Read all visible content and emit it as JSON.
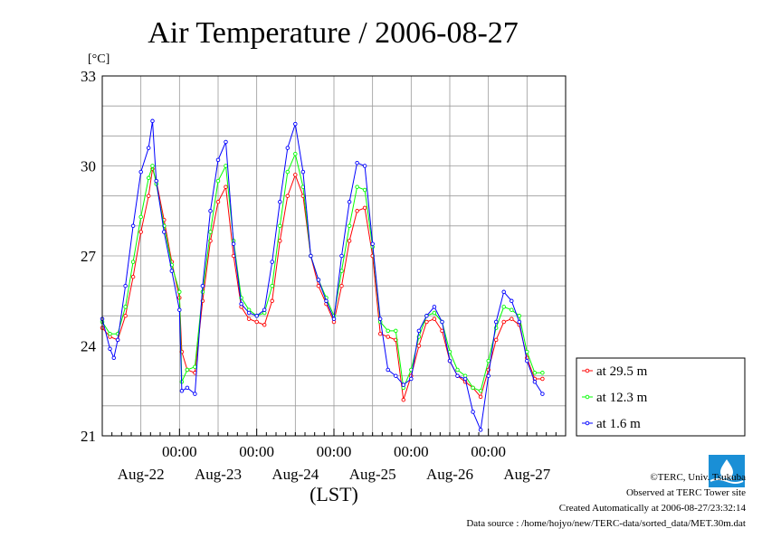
{
  "chart_data": {
    "type": "line",
    "title": "Air Temperature / 2006-08-27",
    "ylabel": "[°C]",
    "xlabel": "(LST)",
    "ylim": [
      21,
      33
    ],
    "yticks": [
      21,
      24,
      27,
      30,
      33
    ],
    "xlim": [
      0,
      6
    ],
    "xtick_labels": [
      "00:00",
      "00:00",
      "00:00",
      "00:00",
      "00:00"
    ],
    "date_labels": [
      "Aug-22",
      "Aug-23",
      "Aug-24",
      "Aug-25",
      "Aug-26",
      "Aug-27"
    ],
    "grid": true,
    "legend_position": "right",
    "series": [
      {
        "name": "at 29.5 m",
        "color": "#ff0000",
        "points": [
          [
            0.0,
            24.6
          ],
          [
            0.1,
            24.3
          ],
          [
            0.2,
            24.2
          ],
          [
            0.3,
            25.0
          ],
          [
            0.4,
            26.3
          ],
          [
            0.5,
            27.8
          ],
          [
            0.6,
            29.0
          ],
          [
            0.65,
            29.9
          ],
          [
            0.7,
            29.5
          ],
          [
            0.8,
            28.2
          ],
          [
            0.9,
            26.8
          ],
          [
            1.0,
            25.6
          ],
          [
            1.03,
            23.8
          ],
          [
            1.1,
            23.2
          ],
          [
            1.2,
            23.1
          ],
          [
            1.3,
            25.5
          ],
          [
            1.4,
            27.5
          ],
          [
            1.5,
            28.8
          ],
          [
            1.6,
            29.3
          ],
          [
            1.7,
            27.0
          ],
          [
            1.8,
            25.3
          ],
          [
            1.9,
            24.9
          ],
          [
            2.0,
            24.8
          ],
          [
            2.1,
            24.7
          ],
          [
            2.2,
            25.5
          ],
          [
            2.3,
            27.5
          ],
          [
            2.4,
            29.0
          ],
          [
            2.5,
            29.7
          ],
          [
            2.6,
            29.0
          ],
          [
            2.7,
            27.0
          ],
          [
            2.8,
            26.0
          ],
          [
            2.9,
            25.4
          ],
          [
            3.0,
            24.8
          ],
          [
            3.1,
            26.0
          ],
          [
            3.2,
            27.5
          ],
          [
            3.3,
            28.5
          ],
          [
            3.4,
            28.6
          ],
          [
            3.5,
            27.0
          ],
          [
            3.6,
            24.4
          ],
          [
            3.7,
            24.3
          ],
          [
            3.8,
            24.2
          ],
          [
            3.9,
            22.2
          ],
          [
            4.0,
            23.0
          ],
          [
            4.1,
            24.0
          ],
          [
            4.2,
            24.8
          ],
          [
            4.3,
            24.9
          ],
          [
            4.4,
            24.5
          ],
          [
            4.5,
            23.5
          ],
          [
            4.6,
            23.0
          ],
          [
            4.7,
            22.8
          ],
          [
            4.8,
            22.6
          ],
          [
            4.9,
            22.3
          ],
          [
            5.0,
            23.2
          ],
          [
            5.1,
            24.2
          ],
          [
            5.2,
            24.8
          ],
          [
            5.3,
            24.9
          ],
          [
            5.4,
            24.7
          ],
          [
            5.5,
            23.6
          ],
          [
            5.6,
            22.9
          ],
          [
            5.7,
            22.9
          ]
        ]
      },
      {
        "name": "at 12.3 m",
        "color": "#00ff00",
        "points": [
          [
            0.0,
            24.8
          ],
          [
            0.1,
            24.4
          ],
          [
            0.2,
            24.4
          ],
          [
            0.3,
            25.3
          ],
          [
            0.4,
            26.8
          ],
          [
            0.5,
            28.3
          ],
          [
            0.6,
            29.6
          ],
          [
            0.65,
            30.0
          ],
          [
            0.7,
            29.4
          ],
          [
            0.8,
            28.0
          ],
          [
            0.9,
            26.7
          ],
          [
            1.0,
            25.8
          ],
          [
            1.03,
            22.8
          ],
          [
            1.1,
            23.2
          ],
          [
            1.2,
            23.3
          ],
          [
            1.3,
            25.8
          ],
          [
            1.4,
            27.8
          ],
          [
            1.5,
            29.5
          ],
          [
            1.6,
            30.0
          ],
          [
            1.7,
            27.5
          ],
          [
            1.8,
            25.6
          ],
          [
            1.9,
            25.2
          ],
          [
            2.0,
            25.0
          ],
          [
            2.1,
            25.1
          ],
          [
            2.2,
            26.0
          ],
          [
            2.3,
            28.0
          ],
          [
            2.4,
            29.8
          ],
          [
            2.5,
            30.4
          ],
          [
            2.6,
            29.3
          ],
          [
            2.7,
            27.0
          ],
          [
            2.8,
            26.2
          ],
          [
            2.9,
            25.6
          ],
          [
            3.0,
            25.0
          ],
          [
            3.1,
            26.5
          ],
          [
            3.2,
            28.0
          ],
          [
            3.3,
            29.3
          ],
          [
            3.4,
            29.2
          ],
          [
            3.5,
            27.3
          ],
          [
            3.6,
            24.8
          ],
          [
            3.7,
            24.5
          ],
          [
            3.8,
            24.5
          ],
          [
            3.9,
            22.6
          ],
          [
            4.0,
            23.2
          ],
          [
            4.1,
            24.3
          ],
          [
            4.2,
            25.0
          ],
          [
            4.3,
            25.1
          ],
          [
            4.4,
            24.8
          ],
          [
            4.5,
            23.8
          ],
          [
            4.6,
            23.2
          ],
          [
            4.7,
            23.0
          ],
          [
            4.8,
            22.6
          ],
          [
            4.9,
            22.5
          ],
          [
            5.0,
            23.5
          ],
          [
            5.1,
            24.6
          ],
          [
            5.2,
            25.3
          ],
          [
            5.3,
            25.2
          ],
          [
            5.4,
            25.0
          ],
          [
            5.5,
            23.8
          ],
          [
            5.6,
            23.1
          ],
          [
            5.7,
            23.1
          ]
        ]
      },
      {
        "name": "at 1.6 m",
        "color": "#0000ff",
        "points": [
          [
            0.0,
            24.9
          ],
          [
            0.1,
            23.9
          ],
          [
            0.15,
            23.6
          ],
          [
            0.2,
            24.2
          ],
          [
            0.3,
            26.0
          ],
          [
            0.4,
            28.0
          ],
          [
            0.5,
            29.8
          ],
          [
            0.6,
            30.6
          ],
          [
            0.65,
            31.5
          ],
          [
            0.7,
            29.5
          ],
          [
            0.8,
            27.8
          ],
          [
            0.9,
            26.5
          ],
          [
            1.0,
            25.2
          ],
          [
            1.03,
            22.5
          ],
          [
            1.1,
            22.6
          ],
          [
            1.2,
            22.4
          ],
          [
            1.3,
            26.0
          ],
          [
            1.4,
            28.5
          ],
          [
            1.5,
            30.2
          ],
          [
            1.6,
            30.8
          ],
          [
            1.7,
            27.4
          ],
          [
            1.8,
            25.4
          ],
          [
            1.9,
            25.1
          ],
          [
            2.0,
            25.0
          ],
          [
            2.1,
            25.2
          ],
          [
            2.2,
            26.8
          ],
          [
            2.3,
            28.8
          ],
          [
            2.4,
            30.6
          ],
          [
            2.5,
            31.4
          ],
          [
            2.6,
            29.8
          ],
          [
            2.7,
            27.0
          ],
          [
            2.8,
            26.2
          ],
          [
            2.9,
            25.5
          ],
          [
            3.0,
            24.9
          ],
          [
            3.1,
            27.0
          ],
          [
            3.2,
            28.8
          ],
          [
            3.3,
            30.1
          ],
          [
            3.4,
            30.0
          ],
          [
            3.5,
            27.4
          ],
          [
            3.6,
            24.9
          ],
          [
            3.7,
            23.2
          ],
          [
            3.8,
            23.0
          ],
          [
            3.9,
            22.7
          ],
          [
            4.0,
            22.9
          ],
          [
            4.1,
            24.5
          ],
          [
            4.2,
            25.0
          ],
          [
            4.3,
            25.3
          ],
          [
            4.4,
            24.8
          ],
          [
            4.5,
            23.5
          ],
          [
            4.6,
            23.0
          ],
          [
            4.7,
            22.9
          ],
          [
            4.8,
            21.8
          ],
          [
            4.9,
            21.2
          ],
          [
            5.0,
            23.0
          ],
          [
            5.1,
            24.8
          ],
          [
            5.2,
            25.8
          ],
          [
            5.3,
            25.5
          ],
          [
            5.4,
            24.8
          ],
          [
            5.5,
            23.5
          ],
          [
            5.6,
            22.8
          ],
          [
            5.7,
            22.4
          ]
        ]
      }
    ]
  },
  "footer": {
    "copyright": "©TERC, Univ. Tsukuba",
    "observed": "Observed at TERC Tower site",
    "created": "Created Automatically at 2006-08-27/23:32:14",
    "source": "Data source : /home/hojyo/new/TERC-data/sorted_data/MET.30m.dat"
  },
  "logo": {
    "text": "TERC",
    "color": "#1a8fd6"
  }
}
